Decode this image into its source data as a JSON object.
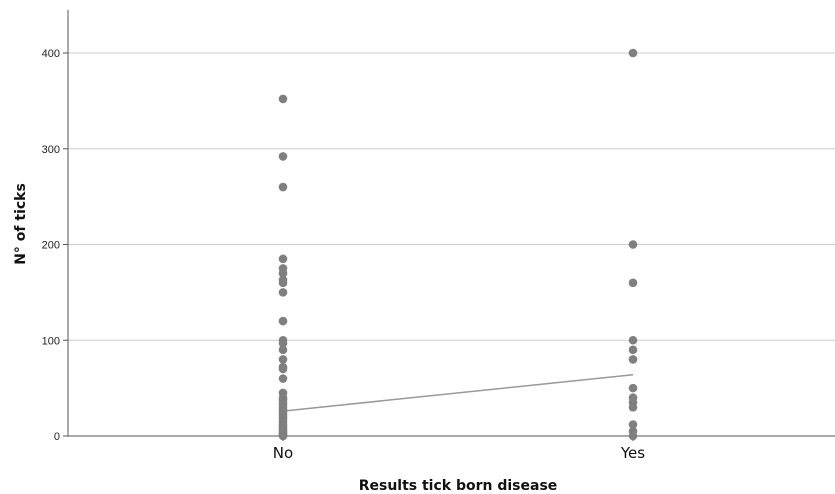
{
  "chart_data": {
    "type": "scatter",
    "xlabel": "Results tick born disease",
    "ylabel": "N° of ticks",
    "categories": [
      "No",
      "Yes"
    ],
    "ylim": [
      0,
      400
    ],
    "yticks": [
      0,
      100,
      200,
      300,
      400
    ],
    "grid": true,
    "colors": {
      "points": "#7f7f7f",
      "line": "#999999",
      "grid": "#cccccc",
      "axis": "#555555"
    },
    "series": [
      {
        "category": "No",
        "values": [
          352,
          292,
          260,
          185,
          175,
          170,
          163,
          160,
          150,
          120,
          100,
          97,
          90,
          80,
          72,
          70,
          60,
          45,
          40,
          38,
          35,
          33,
          30,
          28,
          25,
          22,
          20,
          18,
          15,
          12,
          10,
          8,
          6,
          5,
          3,
          2,
          1,
          0
        ]
      },
      {
        "category": "Yes",
        "values": [
          400,
          200,
          160,
          100,
          90,
          80,
          50,
          40,
          35,
          30,
          12,
          5,
          0
        ]
      }
    ],
    "trend_line": [
      {
        "category": "No",
        "y": 26
      },
      {
        "category": "Yes",
        "y": 64
      }
    ]
  }
}
